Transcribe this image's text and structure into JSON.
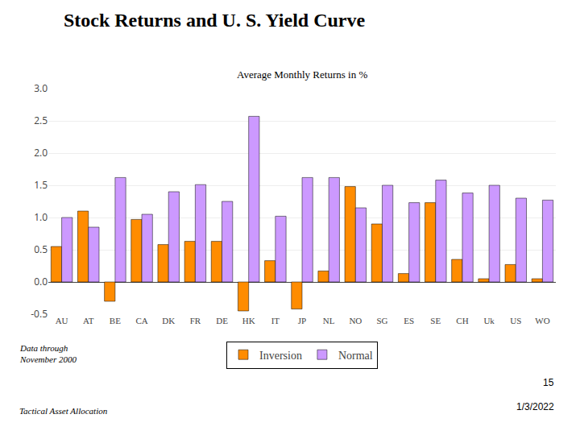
{
  "chart_data": {
    "type": "bar",
    "title": "Stock Returns and U. S. Yield Curve",
    "subtitle": "Average Monthly Returns in %",
    "categories": [
      "AU",
      "AT",
      "BE",
      "CA",
      "DK",
      "FR",
      "DE",
      "HK",
      "IT",
      "JP",
      "NL",
      "NO",
      "SG",
      "ES",
      "SE",
      "CH",
      "Uk",
      "US",
      "WO"
    ],
    "series": [
      {
        "name": "Inversion",
        "color": "#FF8C00",
        "values": [
          0.55,
          1.1,
          -0.3,
          0.97,
          0.58,
          0.63,
          0.63,
          -0.45,
          0.33,
          -0.42,
          0.17,
          1.48,
          0.9,
          0.13,
          1.23,
          0.35,
          0.05,
          0.27,
          0.05
        ]
      },
      {
        "name": "Normal",
        "color": "#CC99FF",
        "values": [
          1.0,
          0.85,
          1.62,
          1.05,
          1.4,
          1.51,
          1.25,
          2.57,
          1.02,
          1.62,
          1.62,
          1.15,
          1.5,
          1.23,
          1.58,
          1.38,
          1.5,
          1.3,
          1.27
        ]
      }
    ],
    "ylim": [
      -0.5,
      3.0
    ],
    "yticks": [
      -0.5,
      {
        "value": 0.0,
        "label": "0.0"
      },
      0.5,
      {
        "value": 1.0,
        "label": "1.0"
      },
      1.5,
      {
        "value": 2.0,
        "label": "2.0"
      },
      2.5,
      {
        "value": 3.0,
        "label": "3.0"
      }
    ],
    "grid": true,
    "legend": "bottom",
    "annotations": [
      "Data through\nNovember 2000",
      "15",
      "1/3/2022",
      "Tactical Asset Allocation"
    ]
  }
}
